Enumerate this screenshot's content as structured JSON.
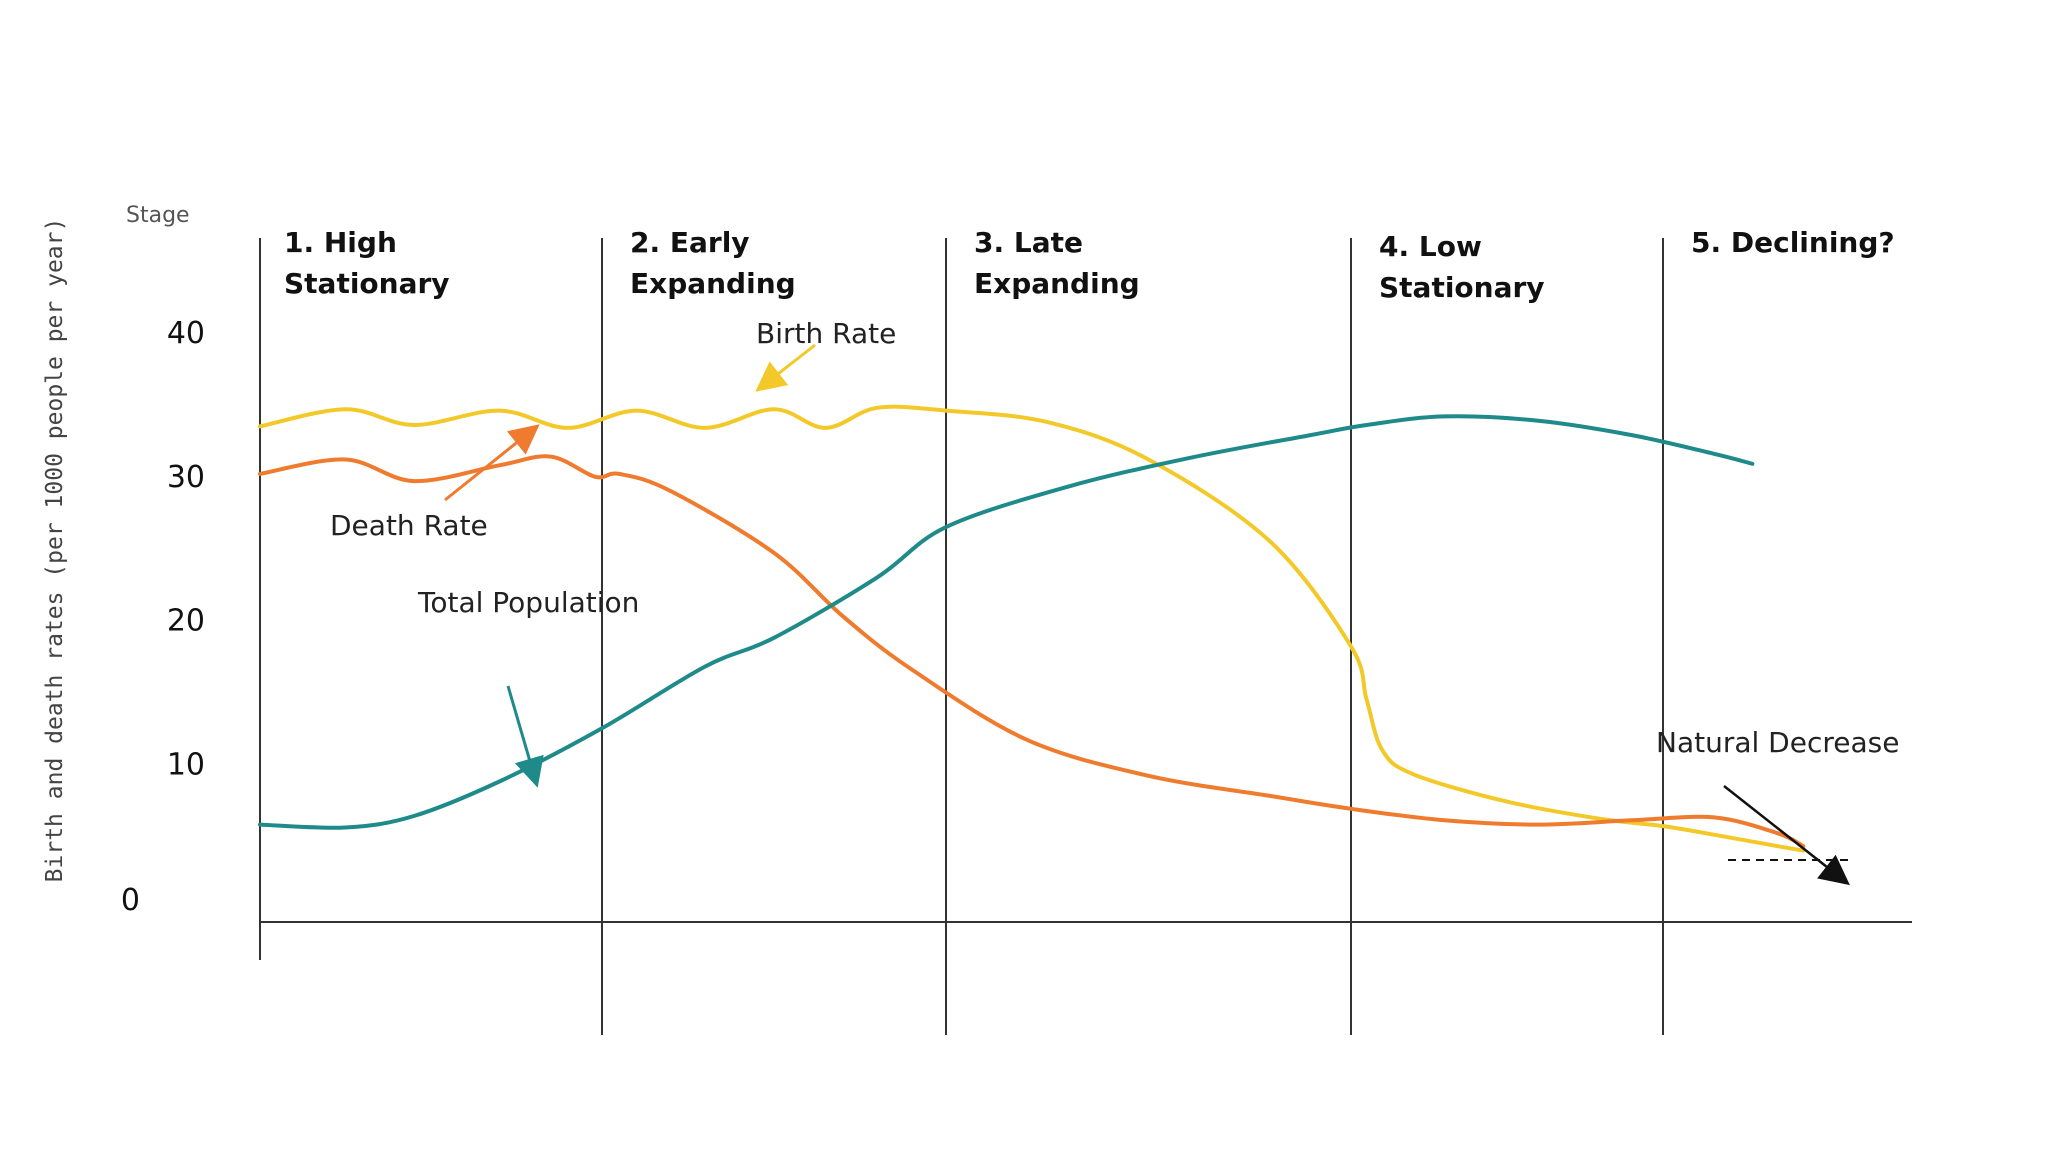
{
  "chart_data": {
    "type": "line",
    "title": "",
    "corner_label": "Stage",
    "ylabel": "Birth and death rates (per 1000 people per year)",
    "xlabel": "",
    "yticks": [
      0,
      10,
      20,
      30,
      40
    ],
    "ylim": [
      0,
      40
    ],
    "stages": [
      {
        "num": "1.",
        "line1": "High",
        "line2": "Stationary"
      },
      {
        "num": "2.",
        "line1": "Early",
        "line2": "Expanding"
      },
      {
        "num": "3.",
        "line1": "Late",
        "line2": "Expanding"
      },
      {
        "num": "4.",
        "line1": "Low",
        "line2": "Stationary"
      },
      {
        "num": "5.",
        "line1": "Declining?",
        "line2": ""
      }
    ],
    "stage_boundaries": [
      1,
      2,
      3,
      4
    ],
    "x_range": [
      0,
      4.85
    ],
    "grid": false,
    "series": [
      {
        "name": "Birth Rate",
        "color": "#f2c928",
        "points": [
          [
            0,
            33.5
          ],
          [
            0.25,
            34.7
          ],
          [
            0.45,
            33.6
          ],
          [
            0.7,
            34.6
          ],
          [
            0.9,
            33.4
          ],
          [
            1.1,
            34.6
          ],
          [
            1.3,
            33.4
          ],
          [
            1.5,
            34.7
          ],
          [
            1.65,
            33.4
          ],
          [
            1.8,
            34.8
          ],
          [
            2.0,
            34.6
          ],
          [
            2.25,
            33.8
          ],
          [
            2.5,
            31.2
          ],
          [
            2.8,
            25.5
          ],
          [
            3.0,
            18.2
          ],
          [
            3.05,
            14.5
          ],
          [
            3.1,
            11.0
          ],
          [
            3.2,
            9.3
          ],
          [
            3.5,
            7.4
          ],
          [
            3.8,
            6.2
          ],
          [
            4.0,
            5.7
          ],
          [
            4.2,
            5.1
          ],
          [
            4.45,
            4.3
          ],
          [
            4.55,
            4.0
          ]
        ]
      },
      {
        "name": "Death Rate",
        "color": "#ef7b2e",
        "points": [
          [
            0,
            30.2
          ],
          [
            0.25,
            31.2
          ],
          [
            0.45,
            29.7
          ],
          [
            0.7,
            30.8
          ],
          [
            0.85,
            31.4
          ],
          [
            0.98,
            30.0
          ],
          [
            1.05,
            30.2
          ],
          [
            1.2,
            29.0
          ],
          [
            1.5,
            24.7
          ],
          [
            1.7,
            20.3
          ],
          [
            1.9,
            16.6
          ],
          [
            2.2,
            11.7
          ],
          [
            2.5,
            9.2
          ],
          [
            2.8,
            7.8
          ],
          [
            3.0,
            6.9
          ],
          [
            3.3,
            6.1
          ],
          [
            3.6,
            5.8
          ],
          [
            3.9,
            6.1
          ],
          [
            4.2,
            6.3
          ],
          [
            4.45,
            5.2
          ],
          [
            4.55,
            4.3
          ]
        ]
      },
      {
        "name": "Total Population",
        "color": "#1f8a8a",
        "points": [
          [
            0,
            5.8
          ],
          [
            0.25,
            5.6
          ],
          [
            0.45,
            6.4
          ],
          [
            0.7,
            8.8
          ],
          [
            1.0,
            12.5
          ],
          [
            1.3,
            16.8
          ],
          [
            1.5,
            18.8
          ],
          [
            1.8,
            23.0
          ],
          [
            2.0,
            26.5
          ],
          [
            2.3,
            29.3
          ],
          [
            2.6,
            31.3
          ],
          [
            2.9,
            32.9
          ],
          [
            3.05,
            33.6
          ],
          [
            3.3,
            34.2
          ],
          [
            3.6,
            33.9
          ],
          [
            3.9,
            32.9
          ],
          [
            4.2,
            31.6
          ],
          [
            4.35,
            30.9
          ]
        ]
      }
    ],
    "annotations": {
      "birth_rate": "Birth Rate",
      "death_rate": "Death Rate",
      "total_population": "Total Population",
      "natural_decrease": "Natural Decrease"
    }
  }
}
